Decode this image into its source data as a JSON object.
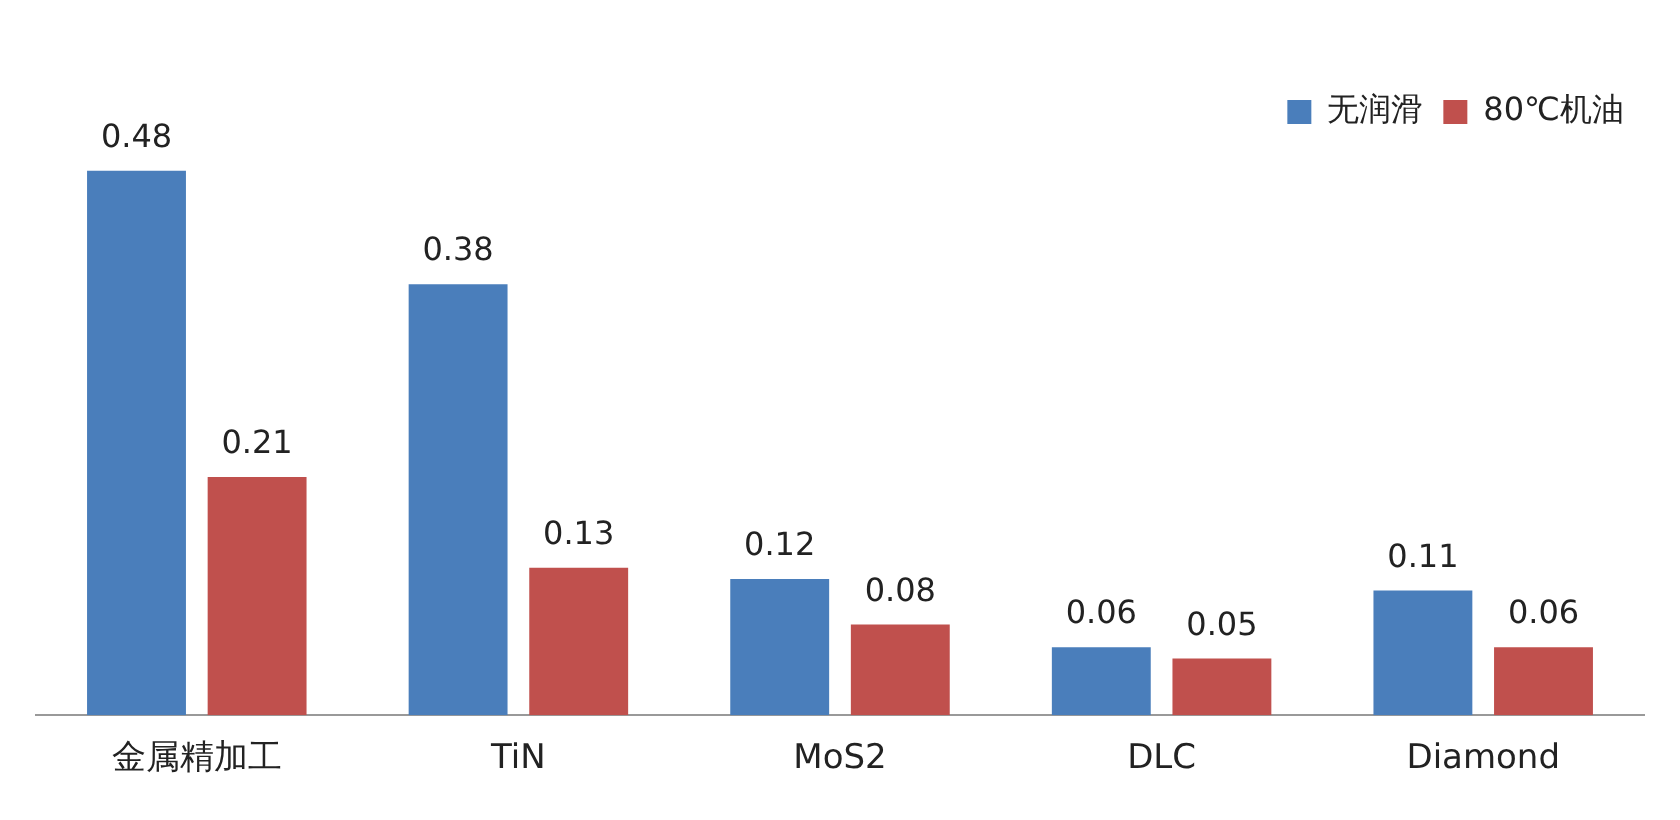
{
  "chart_data": {
    "type": "bar",
    "categories": [
      "金属精加工",
      "TiN",
      "MoS2",
      "DLC",
      "Diamond"
    ],
    "series": [
      {
        "name": "无润滑",
        "color": "#4a7ebb",
        "values": [
          0.48,
          0.38,
          0.12,
          0.06,
          0.11
        ]
      },
      {
        "name": "80℃机油",
        "color": "#c0504d",
        "values": [
          0.21,
          0.13,
          0.08,
          0.05,
          0.06
        ]
      }
    ],
    "data_labels": true,
    "legend": "top right",
    "grid": false
  }
}
